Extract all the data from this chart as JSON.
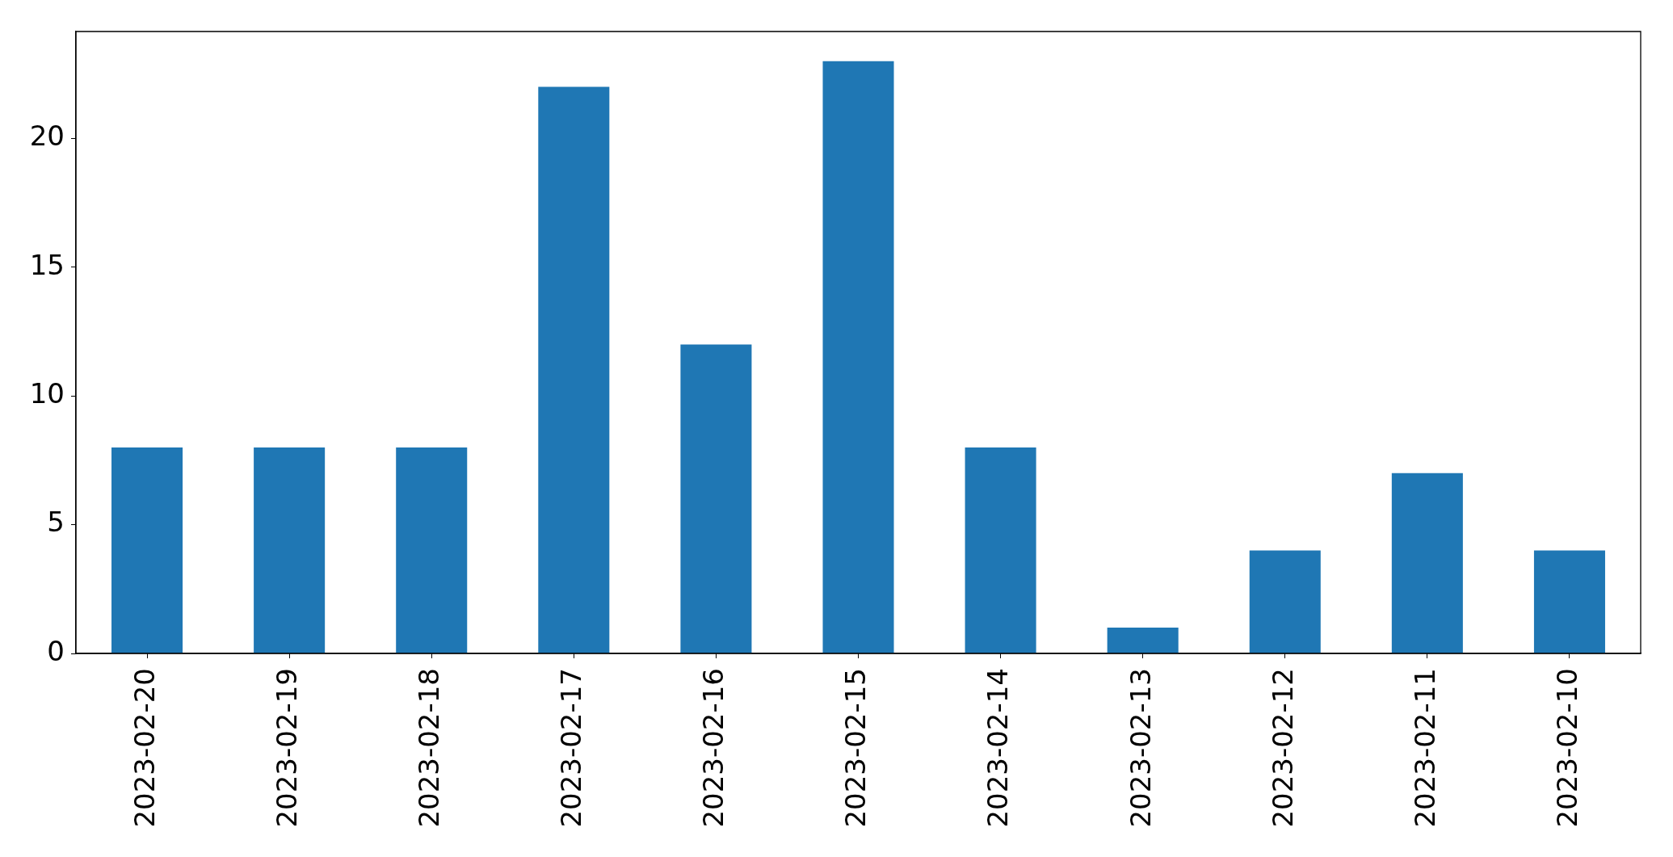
{
  "chart_data": {
    "type": "bar",
    "categories": [
      "2023-02-20",
      "2023-02-19",
      "2023-02-18",
      "2023-02-17",
      "2023-02-16",
      "2023-02-15",
      "2023-02-14",
      "2023-02-13",
      "2023-02-12",
      "2023-02-11",
      "2023-02-10"
    ],
    "values": [
      8,
      8,
      8,
      22,
      12,
      23,
      8,
      1,
      4,
      7,
      4
    ],
    "color": "#1f77b4",
    "ylim": [
      0,
      24.15
    ],
    "yticks": [
      0,
      5,
      10,
      15,
      20
    ]
  }
}
